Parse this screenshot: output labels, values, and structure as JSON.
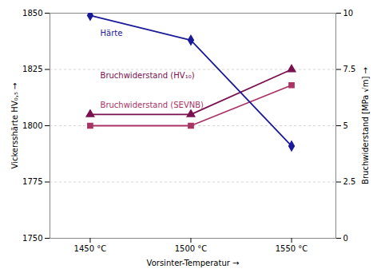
{
  "chart_data": {
    "type": "line",
    "x": [
      1450,
      1500,
      1550
    ],
    "xlabel": "Vorsinter-Temperatur",
    "ylabel": "Vickersshärte HV₀,₅",
    "y2label": "Bruchwiderstand [MPa √m]",
    "xlim": [
      1430,
      1572
    ],
    "xticks": [
      {
        "value": 1450,
        "label": "1450 °C"
      },
      {
        "value": 1500,
        "label": "1500 °C"
      },
      {
        "value": 1550,
        "label": "1550 °C"
      }
    ],
    "ylim": [
      1750,
      1850
    ],
    "yticks": [
      1750,
      1775,
      1800,
      1825,
      1850
    ],
    "y2lim": [
      0,
      10
    ],
    "y2ticks": [
      0,
      2.5,
      5,
      7.5,
      10
    ],
    "grid": true,
    "series": [
      {
        "name": "Bruchwiderstand (HV₁₀)",
        "color": "#7B1050",
        "marker": "triangle",
        "axis": "y2",
        "values": [
          5.5,
          5.5,
          7.5
        ]
      },
      {
        "name": "Bruchwiderstand (SEVNB)",
        "color": "#AA3366",
        "marker": "square",
        "axis": "y2",
        "values": [
          5.0,
          5.0,
          6.8
        ]
      },
      {
        "name": "Härte",
        "color": "#1A1A9A",
        "marker": "diamond",
        "values": [
          1849,
          1838,
          1791
        ]
      }
    ],
    "annotations": [
      {
        "text": "Härte",
        "x": 1455,
        "y": 1840,
        "color": "#1A1A9A"
      },
      {
        "text": "Bruchwiderstand (HV₁₀)",
        "x": 1455,
        "y": 1821,
        "color": "#7B1050"
      },
      {
        "text": "Bruchwiderstand (SEVNB)",
        "x": 1455,
        "y": 1808,
        "color": "#AA3366"
      }
    ]
  }
}
